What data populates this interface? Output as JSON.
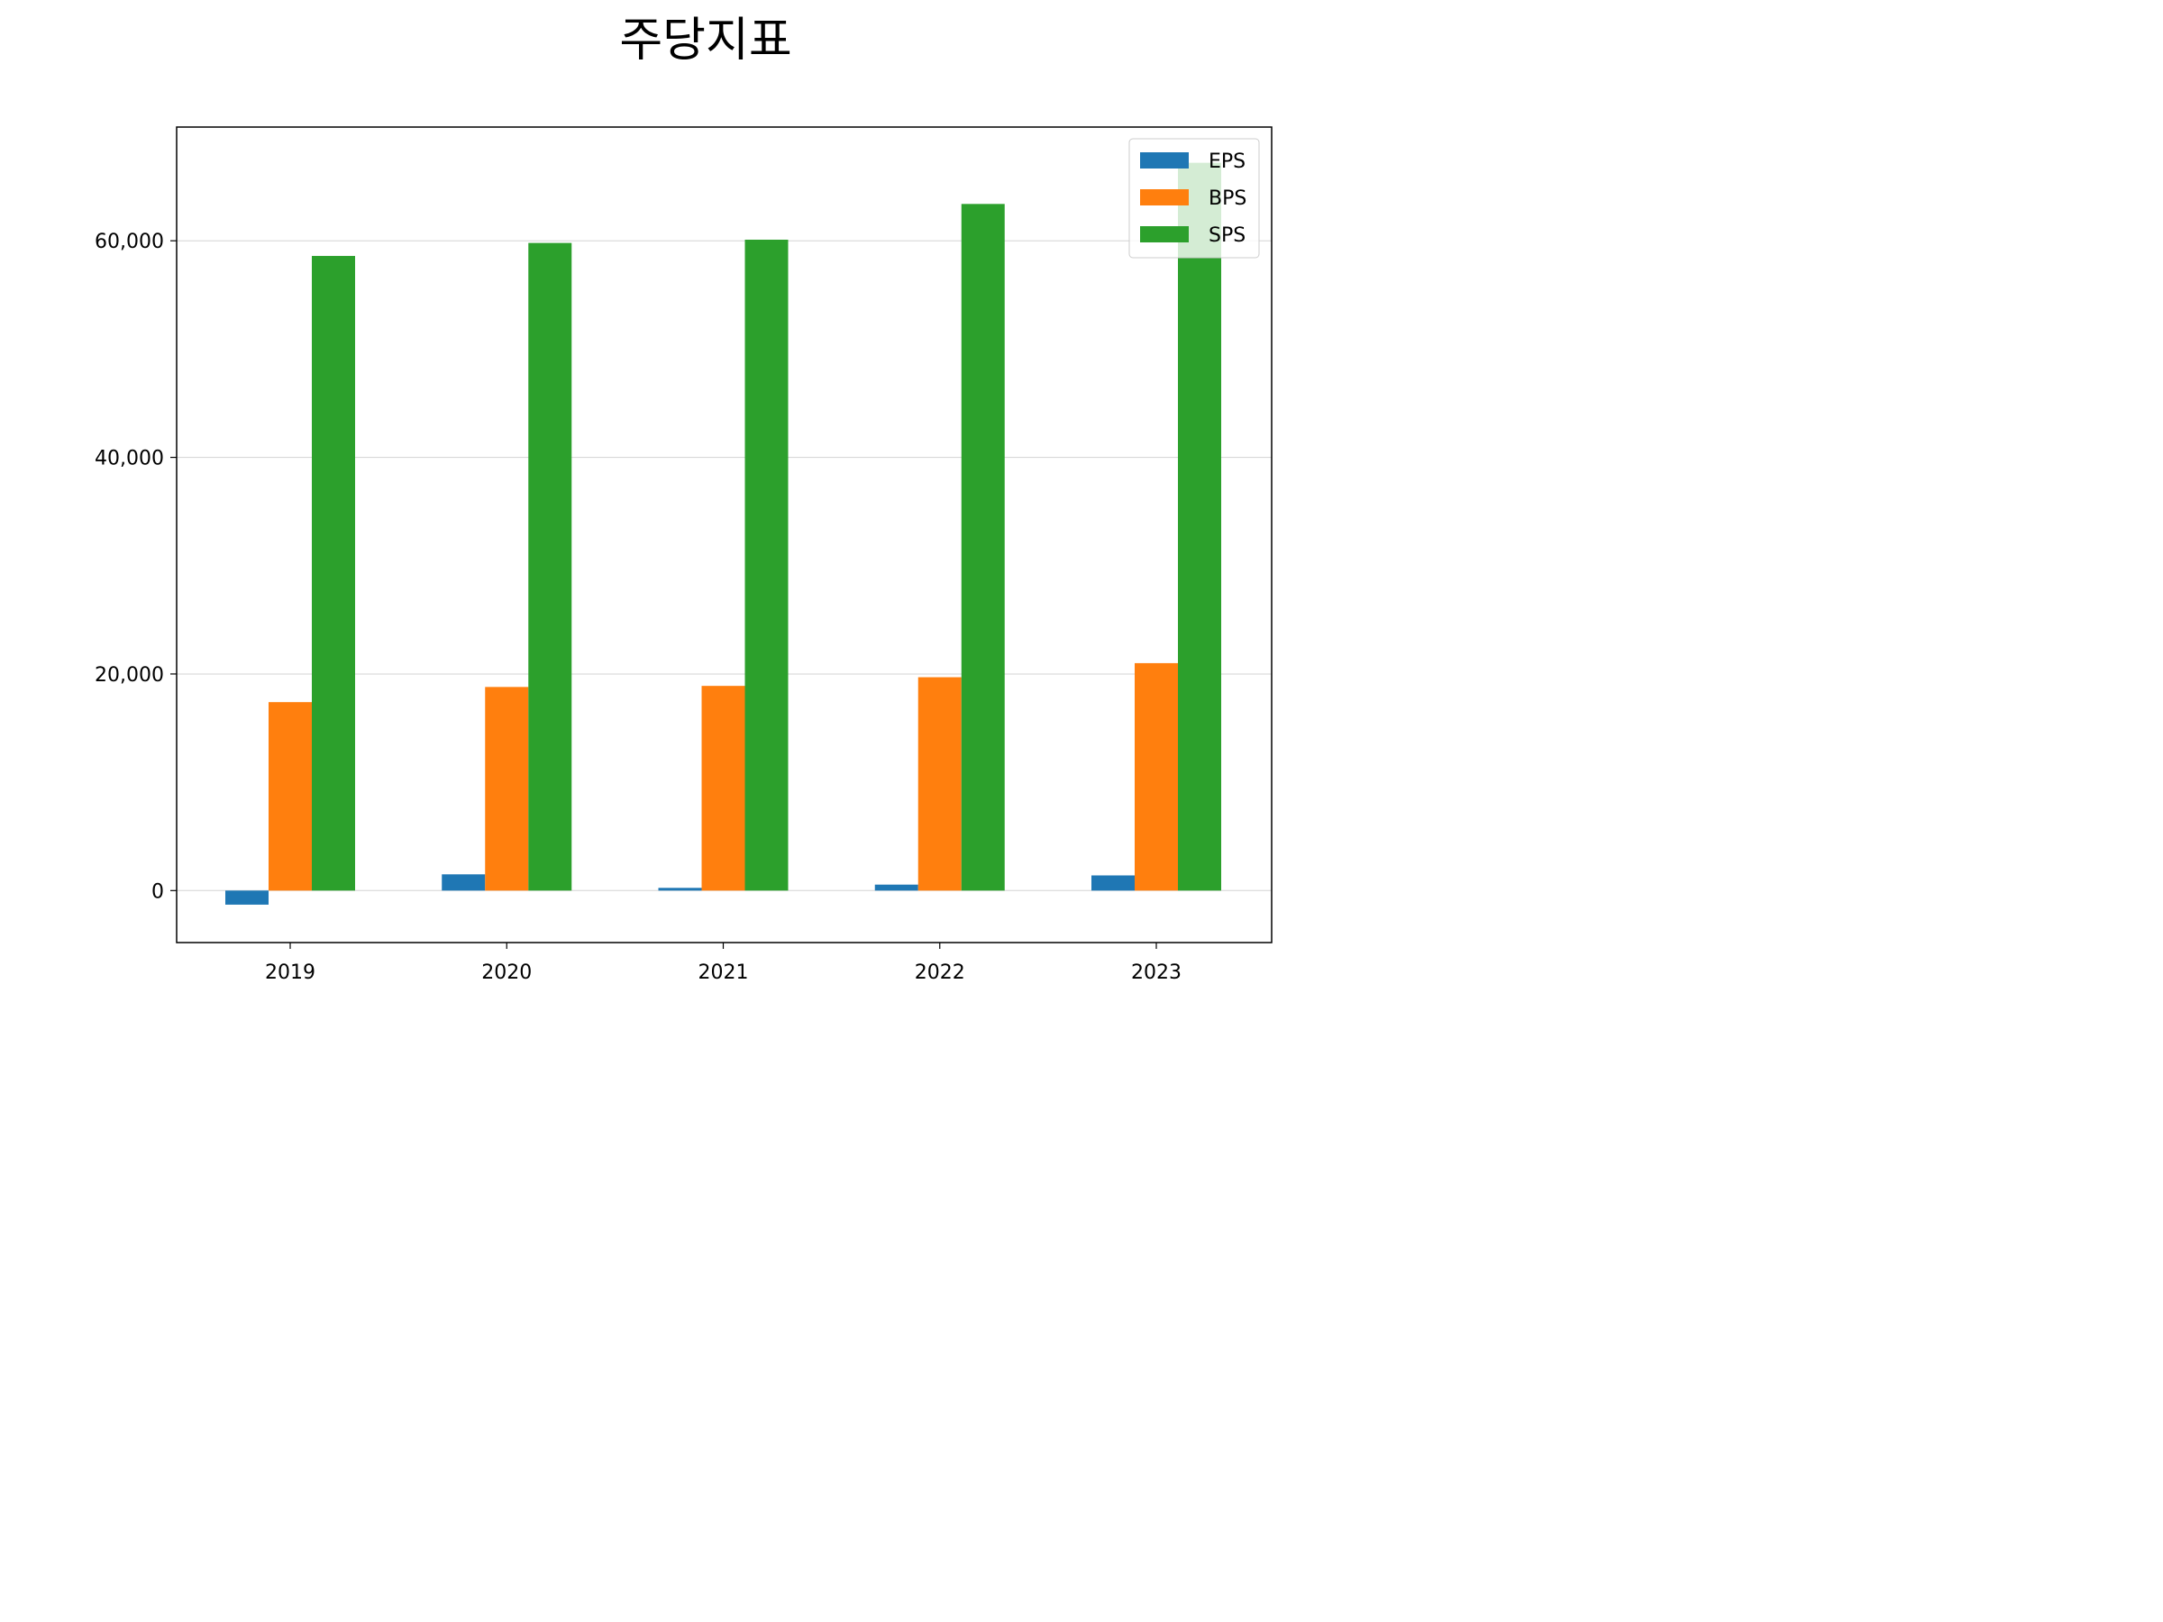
{
  "chart_data": {
    "type": "bar",
    "title": "주당지표",
    "categories": [
      "2019",
      "2020",
      "2021",
      "2022",
      "2023"
    ],
    "series": [
      {
        "name": "EPS",
        "values": [
          -1300,
          1500,
          250,
          550,
          1400
        ],
        "color": "#1f77b4"
      },
      {
        "name": "BPS",
        "values": [
          17400,
          18800,
          18900,
          19700,
          21000
        ],
        "color": "#ff7f0e"
      },
      {
        "name": "SPS",
        "values": [
          58600,
          59800,
          60100,
          63400,
          67200
        ],
        "color": "#2ca02c"
      }
    ],
    "ylim": [
      -4800,
      70500
    ],
    "yticks": [
      0,
      20000,
      40000,
      60000
    ],
    "ytick_labels": [
      "0",
      "20,000",
      "40,000",
      "60,000"
    ],
    "grid": "y",
    "legend_position": "top-right"
  }
}
